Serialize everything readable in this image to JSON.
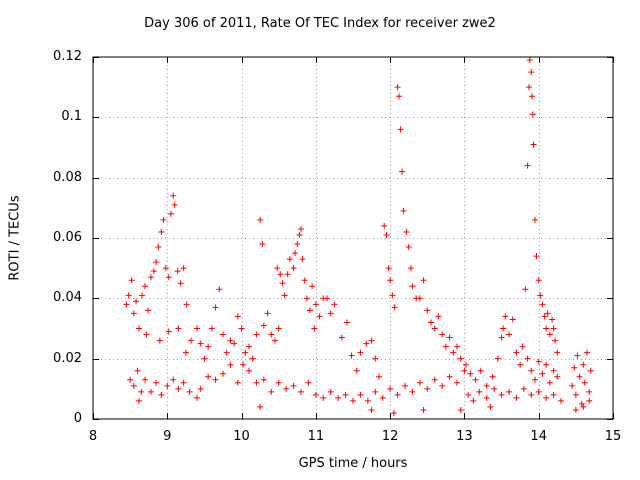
{
  "chart_data": {
    "type": "scatter",
    "title": "Day 306 of 2011, Rate Of TEC Index for receiver zwe2",
    "xlabel": "GPS time / hours",
    "ylabel": "ROTI / TECUs",
    "xlim": [
      8,
      15
    ],
    "ylim": [
      0,
      0.12
    ],
    "xticks": [
      "8",
      "9",
      "10",
      "11",
      "12",
      "13",
      "14",
      "15"
    ],
    "yticks": [
      "0",
      "0.02",
      "0.04",
      "0.06",
      "0.08",
      "0.1",
      "0.12"
    ],
    "grid": true,
    "marker": "+",
    "color": "#ff0000",
    "series": [
      {
        "name": "ROTI",
        "points": [
          [
            8.45,
            0.038
          ],
          [
            8.48,
            0.041
          ],
          [
            8.52,
            0.046
          ],
          [
            8.55,
            0.035
          ],
          [
            8.58,
            0.039
          ],
          [
            8.62,
            0.03
          ],
          [
            8.66,
            0.041
          ],
          [
            8.7,
            0.044
          ],
          [
            8.74,
            0.036
          ],
          [
            8.78,
            0.047
          ],
          [
            8.82,
            0.049
          ],
          [
            8.85,
            0.052
          ],
          [
            8.88,
            0.057
          ],
          [
            8.92,
            0.062
          ],
          [
            8.95,
            0.066
          ],
          [
            8.98,
            0.05
          ],
          [
            9.02,
            0.047
          ],
          [
            9.05,
            0.068
          ],
          [
            9.08,
            0.074
          ],
          [
            9.1,
            0.071
          ],
          [
            9.14,
            0.049
          ],
          [
            9.18,
            0.045
          ],
          [
            9.22,
            0.05
          ],
          [
            9.26,
            0.038
          ],
          [
            8.5,
            0.013
          ],
          [
            8.55,
            0.011
          ],
          [
            8.6,
            0.016
          ],
          [
            8.65,
            0.009
          ],
          [
            8.7,
            0.013
          ],
          [
            8.78,
            0.009
          ],
          [
            8.85,
            0.012
          ],
          [
            8.92,
            0.008
          ],
          [
            9.0,
            0.011
          ],
          [
            9.08,
            0.013
          ],
          [
            9.15,
            0.01
          ],
          [
            9.22,
            0.012
          ],
          [
            9.3,
            0.009
          ],
          [
            8.62,
            0.006
          ],
          [
            8.72,
            0.028
          ],
          [
            8.9,
            0.026
          ],
          [
            9.02,
            0.029
          ],
          [
            9.15,
            0.03
          ],
          [
            9.25,
            0.022
          ],
          [
            9.32,
            0.026
          ],
          [
            9.4,
            0.03
          ],
          [
            9.45,
            0.025
          ],
          [
            9.5,
            0.02
          ],
          [
            9.55,
            0.024
          ],
          [
            9.6,
            0.03
          ],
          [
            9.65,
            0.037
          ],
          [
            9.7,
            0.043
          ],
          [
            9.75,
            0.028
          ],
          [
            9.8,
            0.022
          ],
          [
            9.85,
            0.026
          ],
          [
            9.9,
            0.025
          ],
          [
            9.95,
            0.034
          ],
          [
            10.0,
            0.03
          ],
          [
            9.45,
            0.01
          ],
          [
            9.55,
            0.014
          ],
          [
            9.65,
            0.013
          ],
          [
            9.75,
            0.015
          ],
          [
            9.85,
            0.018
          ],
          [
            9.95,
            0.012
          ],
          [
            9.4,
            0.007
          ],
          [
            10.02,
            0.018
          ],
          [
            10.05,
            0.022
          ],
          [
            10.1,
            0.024
          ],
          [
            10.15,
            0.02
          ],
          [
            10.2,
            0.028
          ],
          [
            10.25,
            0.066
          ],
          [
            10.28,
            0.058
          ],
          [
            10.3,
            0.031
          ],
          [
            10.35,
            0.035
          ],
          [
            10.4,
            0.028
          ],
          [
            10.45,
            0.026
          ],
          [
            10.5,
            0.03
          ],
          [
            10.48,
            0.05
          ],
          [
            10.52,
            0.048
          ],
          [
            10.55,
            0.045
          ],
          [
            10.58,
            0.041
          ],
          [
            10.62,
            0.048
          ],
          [
            10.65,
            0.053
          ],
          [
            10.7,
            0.05
          ],
          [
            10.72,
            0.055
          ],
          [
            10.75,
            0.058
          ],
          [
            10.78,
            0.061
          ],
          [
            10.8,
            0.063
          ],
          [
            10.82,
            0.053
          ],
          [
            10.85,
            0.046
          ],
          [
            10.88,
            0.04
          ],
          [
            10.92,
            0.036
          ],
          [
            10.95,
            0.044
          ],
          [
            10.98,
            0.03
          ],
          [
            11.0,
            0.038
          ],
          [
            11.05,
            0.034
          ],
          [
            11.1,
            0.04
          ],
          [
            11.15,
            0.04
          ],
          [
            11.2,
            0.035
          ],
          [
            11.25,
            0.038
          ],
          [
            10.1,
            0.016
          ],
          [
            10.2,
            0.012
          ],
          [
            10.3,
            0.013
          ],
          [
            10.4,
            0.009
          ],
          [
            10.5,
            0.012
          ],
          [
            10.6,
            0.01
          ],
          [
            10.7,
            0.011
          ],
          [
            10.8,
            0.009
          ],
          [
            10.9,
            0.012
          ],
          [
            11.0,
            0.008
          ],
          [
            11.1,
            0.007
          ],
          [
            11.2,
            0.009
          ],
          [
            11.3,
            0.007
          ],
          [
            11.4,
            0.008
          ],
          [
            11.5,
            0.006
          ],
          [
            10.25,
            0.004
          ],
          [
            11.35,
            0.027
          ],
          [
            11.42,
            0.032
          ],
          [
            11.48,
            0.021
          ],
          [
            11.55,
            0.016
          ],
          [
            11.6,
            0.022
          ],
          [
            11.68,
            0.025
          ],
          [
            11.75,
            0.026
          ],
          [
            11.8,
            0.02
          ],
          [
            11.85,
            0.014
          ],
          [
            11.92,
            0.064
          ],
          [
            11.95,
            0.061
          ],
          [
            11.98,
            0.05
          ],
          [
            12.0,
            0.046
          ],
          [
            12.03,
            0.041
          ],
          [
            12.06,
            0.037
          ],
          [
            12.1,
            0.11
          ],
          [
            12.12,
            0.107
          ],
          [
            12.14,
            0.096
          ],
          [
            12.16,
            0.082
          ],
          [
            12.18,
            0.069
          ],
          [
            12.22,
            0.062
          ],
          [
            12.25,
            0.057
          ],
          [
            12.28,
            0.05
          ],
          [
            12.3,
            0.044
          ],
          [
            12.35,
            0.04
          ],
          [
            12.4,
            0.04
          ],
          [
            12.45,
            0.046
          ],
          [
            12.5,
            0.036
          ],
          [
            12.55,
            0.032
          ],
          [
            12.6,
            0.03
          ],
          [
            12.65,
            0.034
          ],
          [
            12.7,
            0.028
          ],
          [
            12.75,
            0.024
          ],
          [
            12.8,
            0.027
          ],
          [
            12.85,
            0.022
          ],
          [
            12.9,
            0.024
          ],
          [
            12.95,
            0.02
          ],
          [
            11.6,
            0.008
          ],
          [
            11.7,
            0.006
          ],
          [
            11.8,
            0.009
          ],
          [
            11.9,
            0.007
          ],
          [
            12.0,
            0.01
          ],
          [
            12.1,
            0.008
          ],
          [
            12.2,
            0.011
          ],
          [
            12.3,
            0.009
          ],
          [
            12.4,
            0.012
          ],
          [
            12.5,
            0.01
          ],
          [
            12.6,
            0.013
          ],
          [
            12.7,
            0.011
          ],
          [
            12.8,
            0.014
          ],
          [
            12.9,
            0.012
          ],
          [
            13.0,
            0.016
          ],
          [
            11.75,
            0.003
          ],
          [
            12.05,
            0.002
          ],
          [
            12.45,
            0.003
          ],
          [
            12.95,
            0.003
          ],
          [
            13.02,
            0.018
          ],
          [
            13.08,
            0.015
          ],
          [
            13.15,
            0.013
          ],
          [
            13.22,
            0.016
          ],
          [
            13.3,
            0.011
          ],
          [
            13.38,
            0.014
          ],
          [
            13.45,
            0.02
          ],
          [
            13.5,
            0.027
          ],
          [
            13.52,
            0.03
          ],
          [
            13.55,
            0.034
          ],
          [
            13.6,
            0.028
          ],
          [
            13.65,
            0.033
          ],
          [
            13.7,
            0.022
          ],
          [
            13.75,
            0.018
          ],
          [
            13.05,
            0.008
          ],
          [
            13.12,
            0.006
          ],
          [
            13.2,
            0.009
          ],
          [
            13.3,
            0.007
          ],
          [
            13.4,
            0.01
          ],
          [
            13.5,
            0.008
          ],
          [
            13.6,
            0.009
          ],
          [
            13.7,
            0.007
          ],
          [
            13.35,
            0.004
          ],
          [
            13.78,
            0.024
          ],
          [
            13.82,
            0.043
          ],
          [
            13.85,
            0.084
          ],
          [
            13.87,
            0.11
          ],
          [
            13.88,
            0.119
          ],
          [
            13.9,
            0.115
          ],
          [
            13.91,
            0.107
          ],
          [
            13.92,
            0.101
          ],
          [
            13.93,
            0.091
          ],
          [
            13.95,
            0.066
          ],
          [
            13.97,
            0.054
          ],
          [
            14.0,
            0.046
          ],
          [
            14.02,
            0.041
          ],
          [
            14.05,
            0.038
          ],
          [
            14.08,
            0.034
          ],
          [
            14.1,
            0.03
          ],
          [
            14.12,
            0.035
          ],
          [
            14.15,
            0.028
          ],
          [
            14.18,
            0.033
          ],
          [
            14.2,
            0.03
          ],
          [
            14.22,
            0.026
          ],
          [
            14.25,
            0.022
          ],
          [
            13.85,
            0.02
          ],
          [
            13.9,
            0.016
          ],
          [
            13.95,
            0.013
          ],
          [
            14.0,
            0.019
          ],
          [
            14.05,
            0.015
          ],
          [
            14.1,
            0.018
          ],
          [
            14.15,
            0.012
          ],
          [
            14.2,
            0.016
          ],
          [
            14.25,
            0.014
          ],
          [
            13.8,
            0.01
          ],
          [
            13.9,
            0.008
          ],
          [
            14.0,
            0.009
          ],
          [
            14.1,
            0.007
          ],
          [
            14.2,
            0.008
          ],
          [
            14.3,
            0.006
          ],
          [
            14.45,
            0.011
          ],
          [
            14.48,
            0.017
          ],
          [
            14.5,
            0.008
          ],
          [
            14.52,
            0.021
          ],
          [
            14.55,
            0.014
          ],
          [
            14.58,
            0.005
          ],
          [
            14.6,
            0.018
          ],
          [
            14.62,
            0.012
          ],
          [
            14.65,
            0.022
          ],
          [
            14.68,
            0.009
          ],
          [
            14.7,
            0.016
          ],
          [
            14.5,
            0.003
          ],
          [
            14.6,
            0.004
          ],
          [
            14.68,
            0.006
          ]
        ]
      }
    ]
  }
}
